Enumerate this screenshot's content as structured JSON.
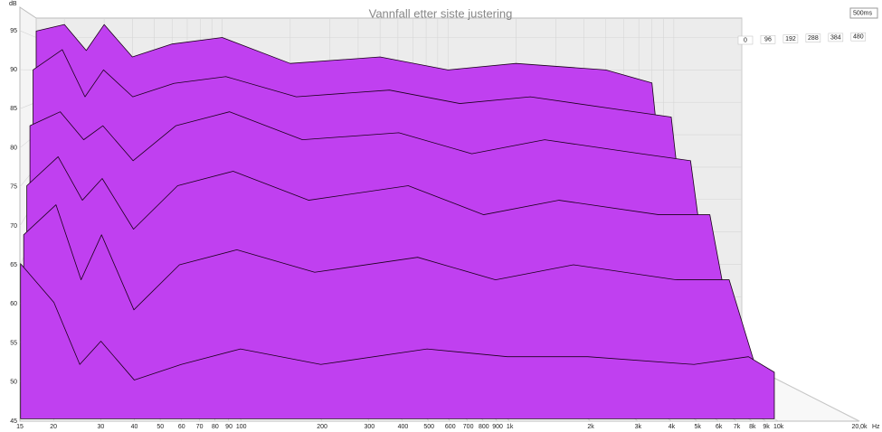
{
  "chart_data": {
    "type": "waterfall",
    "title": "Vannfall etter siste justering",
    "y_label": "dB",
    "x_label": "Hz",
    "z_label": "500ms",
    "x": [
      15,
      20,
      25,
      30,
      40,
      60,
      100,
      200,
      500,
      1000,
      2000,
      5000,
      8000,
      10000
    ],
    "xlim": [
      15,
      20000
    ],
    "log_x": true,
    "xticks": [
      15,
      20,
      30,
      40,
      50,
      60,
      70,
      80,
      90,
      100,
      200,
      300,
      400,
      500,
      600,
      700,
      800,
      900,
      {
        "value": 1000,
        "label": "1k"
      },
      {
        "value": 2000,
        "label": "2k"
      },
      {
        "value": 3000,
        "label": "3k"
      },
      {
        "value": 4000,
        "label": "4k"
      },
      {
        "value": 5000,
        "label": "5k"
      },
      {
        "value": 6000,
        "label": "6k"
      },
      {
        "value": 7000,
        "label": "7k"
      },
      {
        "value": 8000,
        "label": "8k"
      },
      {
        "value": 9000,
        "label": "9k"
      },
      {
        "value": 10000,
        "label": "10k"
      },
      {
        "value": 20000,
        "label": "20,0k"
      }
    ],
    "ylim": [
      45,
      98
    ],
    "yticks": [
      45,
      50,
      55,
      60,
      65,
      70,
      75,
      80,
      85,
      90,
      95
    ],
    "zlim": [
      0,
      500
    ],
    "zticks": [
      0,
      96,
      192,
      288,
      384,
      480
    ],
    "fill": "#c040f0",
    "stroke": "#1a001a",
    "series": [
      {
        "values": [
          96,
          97,
          93,
          97,
          92,
          94,
          95,
          91,
          92,
          90,
          91,
          90,
          88,
          55
        ]
      },
      {
        "values": [
          90,
          93,
          86,
          90,
          86,
          88,
          89,
          86,
          87,
          85,
          86,
          84,
          83,
          53
        ]
      },
      {
        "values": [
          82,
          84,
          80,
          82,
          77,
          82,
          84,
          80,
          81,
          78,
          80,
          78,
          77,
          52
        ]
      },
      {
        "values": [
          74,
          78,
          72,
          75,
          68,
          74,
          76,
          72,
          74,
          70,
          72,
          70,
          70,
          52
        ]
      },
      {
        "values": [
          68,
          72,
          62,
          68,
          58,
          64,
          66,
          63,
          65,
          62,
          64,
          62,
          62,
          51
        ]
      },
      {
        "values": [
          65,
          60,
          52,
          55,
          50,
          52,
          54,
          52,
          54,
          53,
          53,
          52,
          53,
          51
        ]
      }
    ]
  }
}
